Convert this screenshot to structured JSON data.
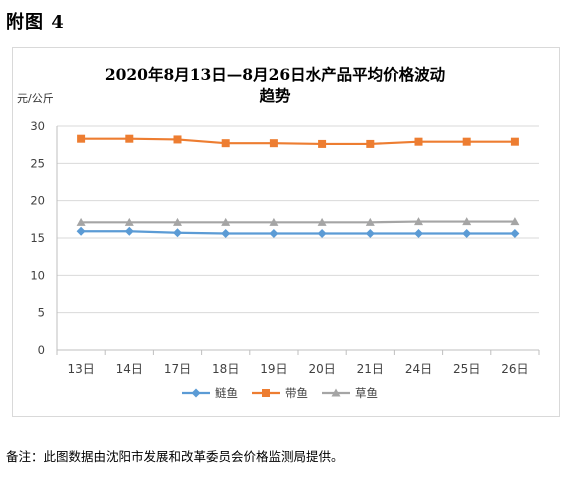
{
  "heading": "附图 4",
  "footnote": "备注：此图数据由沈阳市发展和改革委员会价格监测局提供。",
  "chart_data": {
    "type": "line",
    "title_line1": "2020年8月13日—8月26日水产品平均价格波动",
    "title_line2": "趋势",
    "ylabel": "元/公斤",
    "ylim": [
      0,
      30
    ],
    "yticks": [
      0,
      5,
      10,
      15,
      20,
      25,
      30
    ],
    "grid": true,
    "legend_position": "bottom",
    "categories": [
      "13日",
      "14日",
      "17日",
      "18日",
      "19日",
      "20日",
      "21日",
      "24日",
      "25日",
      "26日"
    ],
    "series": [
      {
        "name": "鲢鱼",
        "marker": "diamond",
        "color": "#5b9bd5",
        "values": [
          15.9,
          15.9,
          15.7,
          15.6,
          15.6,
          15.6,
          15.6,
          15.6,
          15.6,
          15.6
        ]
      },
      {
        "name": "带鱼",
        "marker": "square",
        "color": "#ed7d31",
        "values": [
          28.3,
          28.3,
          28.2,
          27.7,
          27.7,
          27.6,
          27.6,
          27.9,
          27.9,
          27.9
        ]
      },
      {
        "name": "草鱼",
        "marker": "triangle",
        "color": "#a5a5a5",
        "values": [
          17.1,
          17.1,
          17.1,
          17.1,
          17.1,
          17.1,
          17.1,
          17.2,
          17.2,
          17.2
        ]
      }
    ]
  }
}
